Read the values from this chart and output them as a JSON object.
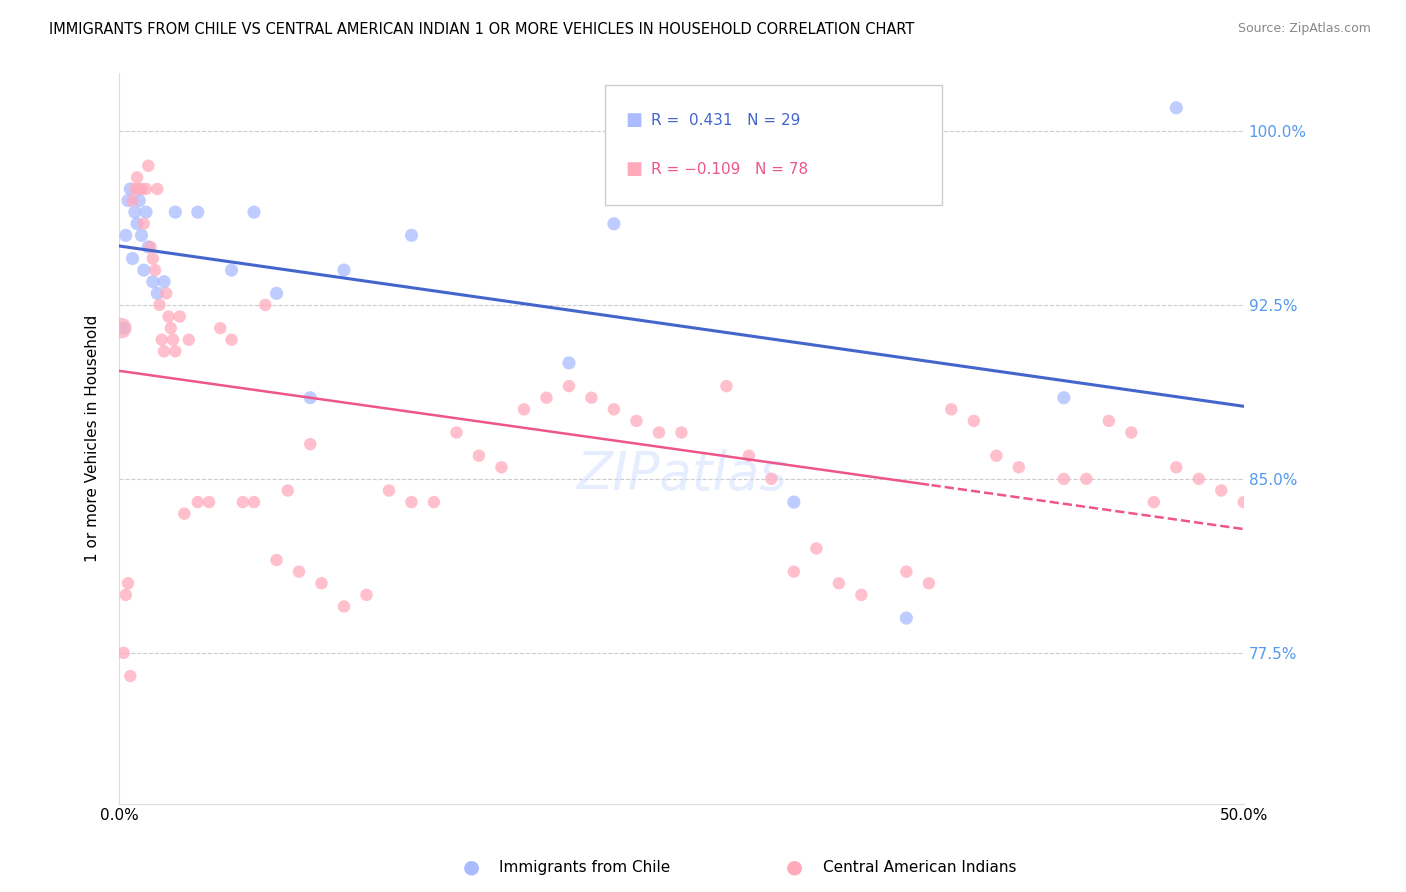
{
  "title": "IMMIGRANTS FROM CHILE VS CENTRAL AMERICAN INDIAN 1 OR MORE VEHICLES IN HOUSEHOLD CORRELATION CHART",
  "source": "Source: ZipAtlas.com",
  "ylabel": "1 or more Vehicles in Household",
  "xmin": 0.0,
  "xmax": 50.0,
  "ymin": 71.0,
  "ymax": 102.5,
  "blue_R": 0.431,
  "blue_N": 29,
  "pink_R": -0.109,
  "pink_N": 78,
  "blue_color": "#aabbff",
  "pink_color": "#ffaabb",
  "blue_line_color": "#4466cc",
  "pink_line_color": "#ee5588",
  "legend_blue_label": "Immigrants from Chile",
  "legend_pink_label": "Central American Indians",
  "ytick_positions": [
    77.5,
    85.0,
    92.5,
    100.0
  ],
  "ytick_labels": [
    "77.5%",
    "85.0%",
    "92.5%",
    "100.0%"
  ],
  "blue_points_x": [
    0.2,
    0.3,
    0.4,
    0.5,
    0.6,
    0.7,
    0.8,
    0.9,
    1.0,
    1.1,
    1.2,
    1.3,
    1.5,
    1.7,
    2.0,
    2.5,
    3.5,
    5.0,
    6.0,
    7.0,
    8.5,
    10.0,
    13.0,
    20.0,
    22.0,
    30.0,
    35.0,
    42.0,
    47.0
  ],
  "blue_points_y": [
    91.5,
    95.5,
    97.0,
    97.5,
    94.5,
    96.5,
    96.0,
    97.0,
    95.5,
    94.0,
    96.5,
    95.0,
    93.5,
    93.0,
    93.5,
    96.5,
    96.5,
    94.0,
    96.5,
    93.0,
    88.5,
    94.0,
    95.5,
    90.0,
    96.0,
    84.0,
    79.0,
    88.5,
    101.0
  ],
  "blue_sizes": [
    90,
    90,
    90,
    90,
    90,
    90,
    90,
    90,
    90,
    90,
    90,
    90,
    90,
    90,
    90,
    90,
    90,
    90,
    90,
    90,
    90,
    90,
    90,
    90,
    90,
    90,
    90,
    90,
    90
  ],
  "pink_points_x": [
    0.1,
    0.2,
    0.3,
    0.4,
    0.5,
    0.6,
    0.7,
    0.8,
    0.9,
    1.0,
    1.1,
    1.2,
    1.3,
    1.4,
    1.5,
    1.6,
    1.7,
    1.8,
    1.9,
    2.0,
    2.1,
    2.2,
    2.3,
    2.4,
    2.5,
    2.7,
    2.9,
    3.1,
    3.5,
    4.0,
    4.5,
    5.0,
    5.5,
    6.0,
    6.5,
    7.0,
    7.5,
    8.0,
    8.5,
    9.0,
    10.0,
    11.0,
    12.0,
    13.0,
    14.0,
    15.0,
    16.0,
    17.0,
    18.0,
    19.0,
    20.0,
    21.0,
    22.0,
    23.0,
    24.0,
    25.0,
    27.0,
    29.0,
    30.0,
    32.0,
    33.0,
    35.0,
    37.0,
    38.0,
    40.0,
    42.0,
    44.0,
    45.0,
    47.0,
    48.0,
    49.0,
    50.0,
    28.0,
    31.0,
    36.0,
    39.0,
    43.0,
    46.0
  ],
  "pink_points_y": [
    91.5,
    77.5,
    80.0,
    80.5,
    76.5,
    97.0,
    97.5,
    98.0,
    97.5,
    97.5,
    96.0,
    97.5,
    98.5,
    95.0,
    94.5,
    94.0,
    97.5,
    92.5,
    91.0,
    90.5,
    93.0,
    92.0,
    91.5,
    91.0,
    90.5,
    92.0,
    83.5,
    91.0,
    84.0,
    84.0,
    91.5,
    91.0,
    84.0,
    84.0,
    92.5,
    81.5,
    84.5,
    81.0,
    86.5,
    80.5,
    79.5,
    80.0,
    84.5,
    84.0,
    84.0,
    87.0,
    86.0,
    85.5,
    88.0,
    88.5,
    89.0,
    88.5,
    88.0,
    87.5,
    87.0,
    87.0,
    89.0,
    85.0,
    81.0,
    80.5,
    80.0,
    81.0,
    88.0,
    87.5,
    85.5,
    85.0,
    87.5,
    87.0,
    85.5,
    85.0,
    84.5,
    84.0,
    86.0,
    82.0,
    80.5,
    86.0,
    85.0,
    84.0
  ],
  "pink_large_idx": [
    0
  ],
  "blue_large_idx": [],
  "pink_large_size": 220
}
